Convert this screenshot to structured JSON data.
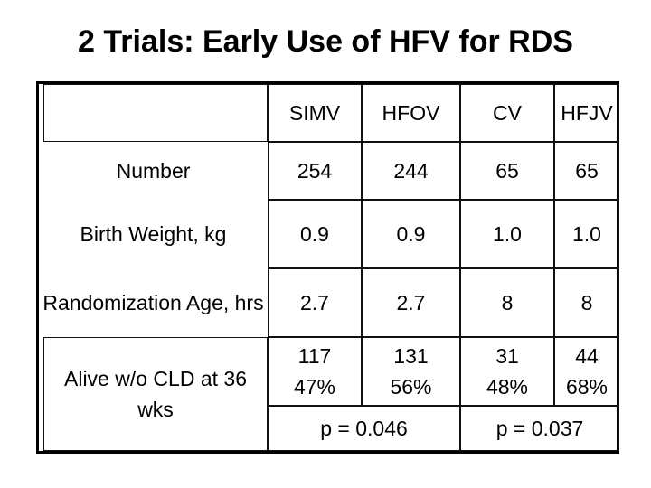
{
  "title": "2 Trials: Early Use of HFV for RDS",
  "columns": [
    "SIMV",
    "HFOV",
    "CV",
    "HFJV"
  ],
  "rows": [
    {
      "label": "Number",
      "values": [
        "254",
        "244",
        "65",
        "65"
      ]
    },
    {
      "label": "Birth Weight, kg",
      "values": [
        "0.9",
        "0.9",
        "1.0",
        "1.0"
      ]
    },
    {
      "label": "Randomization Age, hrs",
      "values": [
        "2.7",
        "2.7",
        "8",
        "8"
      ]
    },
    {
      "label": "Alive w/o CLD at 36 wks",
      "values": [
        "117\n47%",
        "131\n56%",
        "31\n48%",
        "44\n68%"
      ]
    }
  ],
  "p_values": [
    "p = 0.046",
    "p = 0.037"
  ]
}
